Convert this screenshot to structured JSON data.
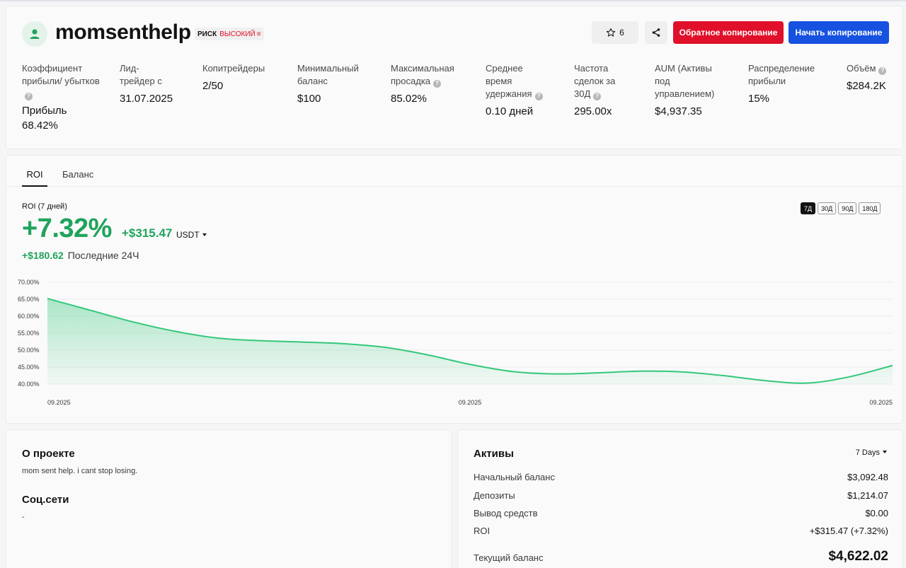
{
  "trader": {
    "username": "momsenthelp",
    "risk_label": "РИСК",
    "risk_value": "ВЫСОКИЙ",
    "favorites_count": "6"
  },
  "actions": {
    "reverse_copy_label": "Обратное копирование",
    "start_copy_label": "Начать копирование"
  },
  "metrics": {
    "pnl_label": "Коэффициент прибыли/ убытков",
    "pnl_value_label": "Прибыль",
    "pnl_value": "68.42%",
    "lead_label": "Лид- трейдер с",
    "lead_value": "31.07.2025",
    "copytraders_label": "Копитрейдеры",
    "copytraders_value": "2/50",
    "min_balance_label": "Минимальный баланс",
    "min_balance_value": "$100",
    "max_drawdown_label": "Максимальная просадка",
    "max_drawdown_value": "85.02%",
    "avg_hold_label": "Среднее время удержания",
    "avg_hold_value": "0.10 дней",
    "freq_label": "Частота сделок за 30Д",
    "freq_value": "295.00x",
    "aum_label": "AUM (Активы под управлением)",
    "aum_value": "$4,937.35",
    "profit_share_label": "Распределение прибыли",
    "profit_share_value": "15%",
    "volume_label": "Объём",
    "volume_value": "$284.2K"
  },
  "tabs": [
    "ROI",
    "Баланс"
  ],
  "roi": {
    "caption": "ROI (7 дней)",
    "percent": "+7.32%",
    "usd": "+$315.47",
    "currency": "USDT",
    "last24_value": "+$180.62",
    "last24_label": "Последние 24Ч",
    "periods": [
      "7Д",
      "30Д",
      "90Д",
      "180Д"
    ],
    "active_period": "7Д"
  },
  "chart_data": {
    "type": "area",
    "x": [
      0,
      1,
      2,
      3,
      4,
      5,
      6,
      7,
      8,
      9,
      10,
      11,
      12,
      13,
      14,
      15,
      16,
      17,
      18,
      19,
      20
    ],
    "x_tick_labels": [
      "09.2025",
      "09.2025",
      "09.2025"
    ],
    "x_tick_positions": [
      0,
      10,
      20
    ],
    "series": [
      {
        "values": [
          65.2,
          61.8,
          58.4,
          55.6,
          53.6,
          52.8,
          52.4,
          51.9,
          50.8,
          48.6,
          45.8,
          43.7,
          43.0,
          43.3,
          43.8,
          43.6,
          42.5,
          41.0,
          40.3,
          42.2,
          45.5
        ]
      }
    ],
    "ylim": [
      40,
      70
    ],
    "y_ticks": [
      "70.00%",
      "65.00%",
      "60.00%",
      "55.00%",
      "50.00%",
      "45.00%",
      "40.00%"
    ],
    "grid": true,
    "line_color": "#34c77b"
  },
  "about": {
    "title": "О проекте",
    "text": "mom sent help. i cant stop losing.",
    "social_title": "Соц.сети",
    "social_value": "-"
  },
  "assets": {
    "title": "Активы",
    "period": "7 Days",
    "rows": [
      {
        "label": "Начальный баланс",
        "value": "$3,092.48"
      },
      {
        "label": "Депозиты",
        "value": "$1,214.07"
      },
      {
        "label": "Вывод средств",
        "value": "$0.00"
      },
      {
        "label": "ROI",
        "value": "+$315.47 (+7.32%)"
      }
    ],
    "total_label": "Текущий баланс",
    "total_value": "$4,622.02"
  }
}
